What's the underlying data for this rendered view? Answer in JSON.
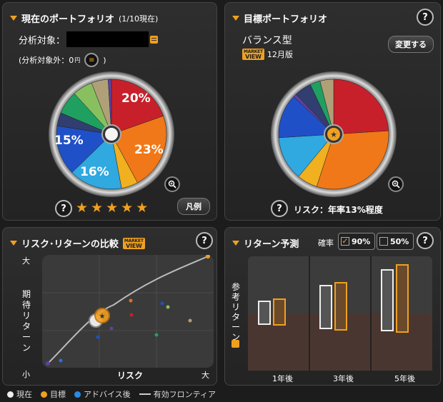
{
  "current_portfolio": {
    "title": "現在のポートフォリオ",
    "count": "(1/10現在)",
    "target_label": "分析対象：",
    "excluded_label": "(分析対象外：0",
    "excluded_unit": "円",
    "excluded_close": ")",
    "pct_labels": [
      "20%",
      "23%",
      "16%",
      "15%"
    ],
    "legend_button": "凡例",
    "rating_stars": 5
  },
  "target_portfolio": {
    "title": "目標ポートフォリオ",
    "type": "バランス型",
    "market_view_top": "MARKET",
    "market_view_bottom": "VIEW",
    "edition": "12月版",
    "change_button": "変更する",
    "risk_text": "リスク：年率13%程度"
  },
  "risk_return": {
    "title": "リスク･リターンの比較",
    "y_high": "大",
    "y_low": "小",
    "y_label": "期待リターン",
    "x_label": "リスク",
    "x_high": "大"
  },
  "return_forecast": {
    "title": "リターン予測",
    "prob_label": "確率",
    "opt_90": "90%",
    "opt_50": "50%",
    "y_label": "参考リターン",
    "periods": [
      "1年後",
      "3年後",
      "5年後"
    ]
  },
  "legend": {
    "current": "現在",
    "target": "目標",
    "after": "アドバイス後",
    "frontier": "有効フロンティア"
  },
  "help": "?",
  "colors": {
    "accent": "#f0a020",
    "red": "#c8202a",
    "orange": "#f07818",
    "yellow": "#f0b020",
    "cyan": "#30a8e0",
    "blue": "#2050c8",
    "navy": "#303e70",
    "green": "#20a060",
    "lightgreen": "#88c060",
    "tan": "#b0a078",
    "purple": "#6040a0"
  }
}
